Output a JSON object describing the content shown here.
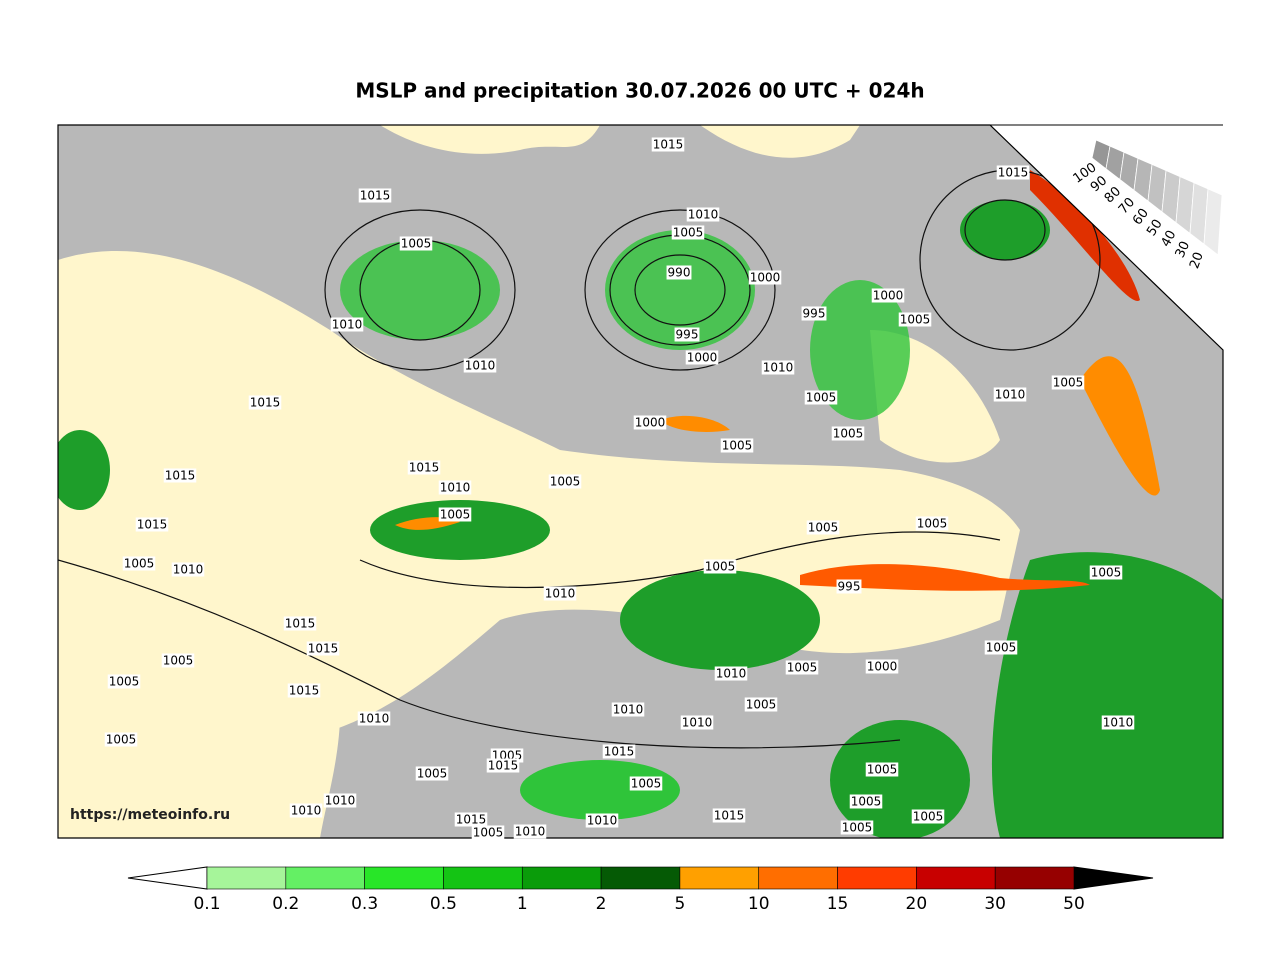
{
  "header": {
    "title": "MSLP and precipitation 30.07.2026 00 UTC + 024h"
  },
  "watermark": "https://meteoinfo.ru",
  "isobar_labels": [
    "1015",
    "1015",
    "1015",
    "1010",
    "1005",
    "1005",
    "990",
    "1000",
    "1000",
    "995",
    "1005",
    "1010",
    "995",
    "1000",
    "1010",
    "1010",
    "1005",
    "1010",
    "1015",
    "1005",
    "1000",
    "1005",
    "1005",
    "1015",
    "1015",
    "1010",
    "1005",
    "1005",
    "1015",
    "1005",
    "1005",
    "1005",
    "1010",
    "1005",
    "995",
    "1005",
    "1010",
    "1015",
    "1015",
    "1005",
    "1005",
    "1000",
    "1005",
    "1010",
    "1005",
    "1015",
    "1010",
    "1005",
    "1010",
    "1010",
    "1010",
    "1005",
    "1015",
    "1005",
    "1015",
    "1005",
    "1005",
    "1005",
    "1010",
    "1005",
    "1010",
    "1015",
    "1015",
    "1005",
    "1010",
    "1005",
    "1010",
    "1005"
  ],
  "precip_legend": {
    "labels": [
      "0.1",
      "0.2",
      "0.3",
      "0.5",
      "1",
      "2",
      "5",
      "10",
      "15",
      "20",
      "30",
      "50"
    ]
  },
  "cloud_legend": {
    "labels": [
      "100",
      "90",
      "80",
      "70",
      "60",
      "50",
      "40",
      "30",
      "20"
    ]
  }
}
